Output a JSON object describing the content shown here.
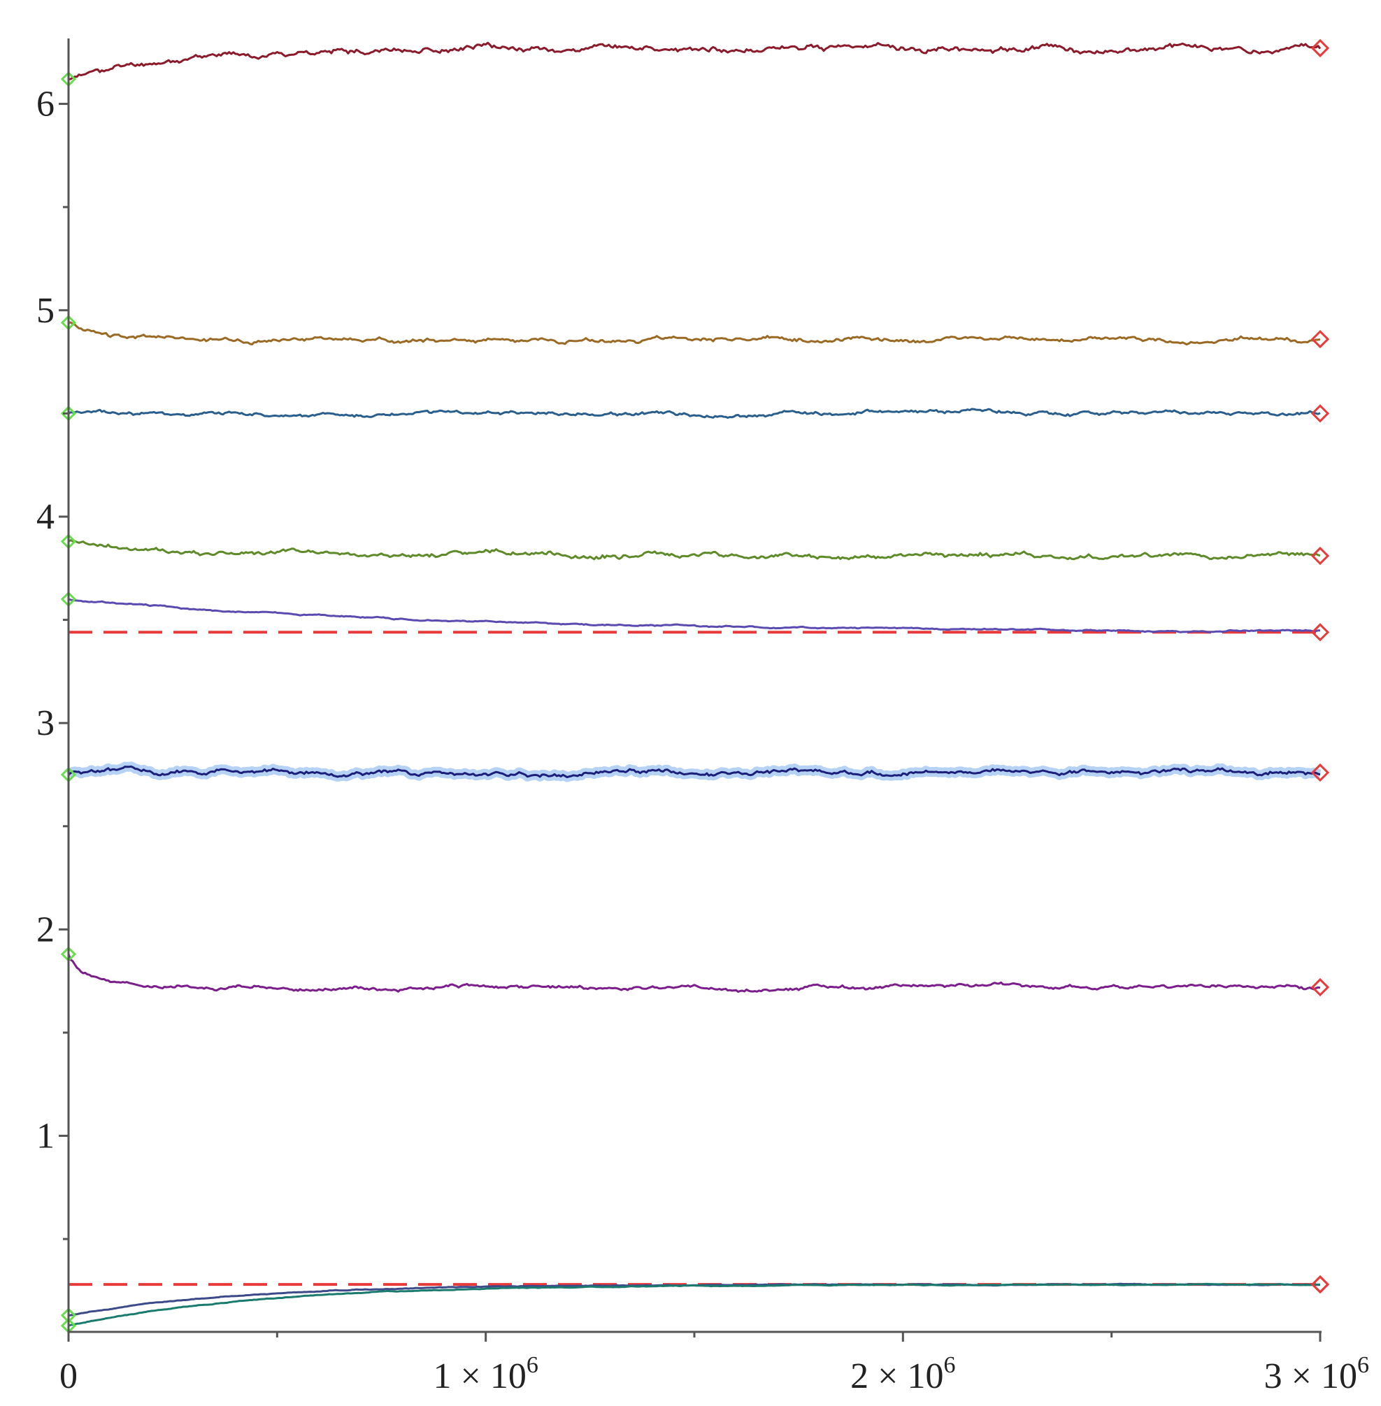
{
  "chart_data": {
    "type": "line",
    "title": "",
    "xlabel": "",
    "ylabel": "",
    "xlim": [
      0,
      3000000
    ],
    "ylim": [
      0.05,
      6.3
    ],
    "x_ticks": [
      {
        "value": 0,
        "label": "0"
      },
      {
        "value": 1000000,
        "label": "1 × 10",
        "sup": "6"
      },
      {
        "value": 2000000,
        "label": "2 × 10",
        "sup": "6"
      },
      {
        "value": 3000000,
        "label": "3 × 10",
        "sup": "6"
      }
    ],
    "x_minor_ticks": [
      500000,
      1500000,
      2500000
    ],
    "y_ticks": [
      {
        "value": 1,
        "label": "1"
      },
      {
        "value": 2,
        "label": "2"
      },
      {
        "value": 3,
        "label": "3"
      },
      {
        "value": 4,
        "label": "4"
      },
      {
        "value": 5,
        "label": "5"
      },
      {
        "value": 6,
        "label": "6"
      }
    ],
    "y_minor_ticks": [
      0.5,
      1.5,
      2.5,
      3.5,
      4.5,
      5.5
    ],
    "grid": false,
    "legend": "none",
    "series": [
      {
        "color": "#8b1a2b",
        "start": 6.12,
        "end": 6.27,
        "settle": 250000,
        "noise": 0.015,
        "seed": 11
      },
      {
        "color": "#9a6a24",
        "start": 4.94,
        "end": 4.86,
        "settle": 60000,
        "noise": 0.012,
        "seed": 23
      },
      {
        "color": "#2a5e8c",
        "start": 4.5,
        "end": 4.5,
        "settle": 50000,
        "noise": 0.01,
        "seed": 37
      },
      {
        "color": "#5f8a2a",
        "start": 3.88,
        "end": 3.81,
        "settle": 200000,
        "noise": 0.013,
        "seed": 41
      },
      {
        "color": "#5b4bb0",
        "start": 3.6,
        "end": 3.44,
        "settle": 900000,
        "noise": 0.004,
        "seed": 53
      },
      {
        "color": "#1c1f7a",
        "start": 2.75,
        "end": 2.76,
        "settle": 50000,
        "noise": 0.012,
        "seed": 61,
        "band": "#9cc3f2"
      },
      {
        "color": "#7b1e8c",
        "start": 1.88,
        "end": 1.72,
        "settle": 50000,
        "noise": 0.01,
        "seed": 71
      },
      {
        "color": "#3d4a8a",
        "start": 0.13,
        "end": 0.28,
        "settle": 400000,
        "noise": 0.002,
        "seed": 83
      },
      {
        "color": "#1b7a6e",
        "start": 0.08,
        "end": 0.28,
        "settle": 450000,
        "noise": 0.002,
        "seed": 97
      }
    ],
    "reference_lines": [
      {
        "y": 3.44,
        "color": "#e83a3a",
        "style": "dashed"
      },
      {
        "y": 0.28,
        "color": "#e83a3a",
        "style": "dashed"
      }
    ],
    "start_marker_color": "#66e04a",
    "end_marker_color": "#e83a3a"
  }
}
